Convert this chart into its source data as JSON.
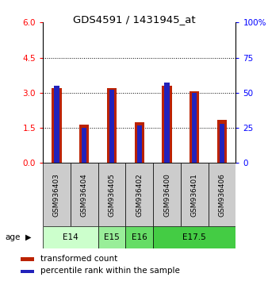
{
  "title": "GDS4591 / 1431945_at",
  "samples": [
    "GSM936403",
    "GSM936404",
    "GSM936405",
    "GSM936402",
    "GSM936400",
    "GSM936401",
    "GSM936406"
  ],
  "transformed_count": [
    3.2,
    1.65,
    3.2,
    1.75,
    3.3,
    3.05,
    1.85
  ],
  "percentile_rank": [
    55,
    25,
    52,
    27,
    57,
    50,
    28
  ],
  "age_groups": [
    {
      "label": "E14",
      "start": 0,
      "end": 2,
      "color": "#ccffcc"
    },
    {
      "label": "E15",
      "start": 2,
      "end": 3,
      "color": "#99ee99"
    },
    {
      "label": "E16",
      "start": 3,
      "end": 4,
      "color": "#66dd66"
    },
    {
      "label": "E17.5",
      "start": 4,
      "end": 7,
      "color": "#44cc44"
    }
  ],
  "ylim_left": [
    0,
    6
  ],
  "ylim_right": [
    0,
    100
  ],
  "yticks_left": [
    0,
    1.5,
    3.0,
    4.5,
    6
  ],
  "yticks_right": [
    0,
    25,
    50,
    75,
    100
  ],
  "bar_color_red": "#bb2200",
  "bar_color_blue": "#2222bb",
  "bar_width": 0.35,
  "blue_bar_width": 0.18,
  "legend_red_label": "transformed count",
  "legend_blue_label": "percentile rank within the sample",
  "age_label": "age",
  "sample_box_color": "#cccccc",
  "dotted_yticks": [
    1.5,
    3.0,
    4.5
  ]
}
